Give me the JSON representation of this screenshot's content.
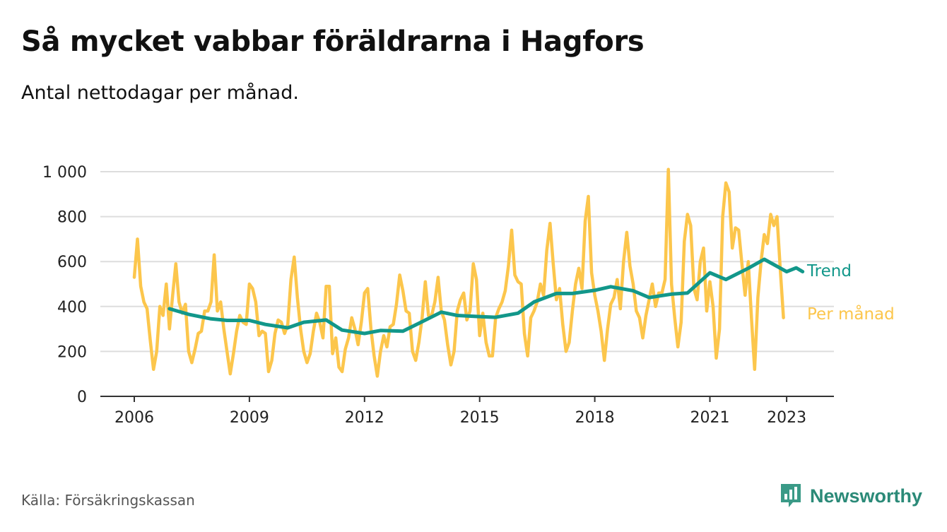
{
  "title": "Så mycket vabbar föräldrarna i Hagfors",
  "subtitle": "Antal nettodagar per månad.",
  "source": "Källa: Försäkringskassan",
  "brand": {
    "name": "Newsworthy",
    "icon": "newsworthy-logo-icon"
  },
  "colors": {
    "monthly": "#fcc64c",
    "trend": "#12978a",
    "grid": "#dddddd",
    "axis": "#333333"
  },
  "chart_data": {
    "type": "line",
    "xlabel": "",
    "ylabel": "",
    "ylim": [
      0,
      1000
    ],
    "yticks": [
      0,
      200,
      400,
      600,
      800,
      1000
    ],
    "ytick_labels": [
      "0",
      "200",
      "400",
      "600",
      "800",
      "1 000"
    ],
    "xticks": [
      2006,
      2009,
      2012,
      2015,
      2018,
      2021,
      2023
    ],
    "xtick_labels": [
      "2006",
      "2009",
      "2012",
      "2015",
      "2018",
      "2021",
      "2023"
    ],
    "grid": true,
    "legend": "inline labels at line ends",
    "series": [
      {
        "name": "Per månad",
        "color": "#fcc64c",
        "start": "2006-01",
        "values": [
          530,
          700,
          490,
          420,
          390,
          250,
          120,
          200,
          400,
          360,
          500,
          300,
          450,
          590,
          420,
          370,
          410,
          200,
          150,
          210,
          280,
          290,
          380,
          380,
          420,
          630,
          380,
          420,
          300,
          200,
          100,
          190,
          290,
          360,
          330,
          320,
          500,
          480,
          420,
          270,
          290,
          280,
          110,
          160,
          280,
          340,
          330,
          280,
          320,
          520,
          620,
          440,
          300,
          200,
          150,
          190,
          290,
          370,
          330,
          260,
          490,
          490,
          190,
          260,
          130,
          110,
          210,
          260,
          350,
          300,
          230,
          330,
          460,
          480,
          300,
          180,
          90,
          200,
          270,
          220,
          310,
          320,
          410,
          540,
          470,
          380,
          370,
          200,
          160,
          240,
          350,
          510,
          360,
          360,
          420,
          530,
          380,
          340,
          230,
          140,
          200,
          380,
          430,
          460,
          340,
          380,
          590,
          520,
          270,
          370,
          240,
          180,
          180,
          350,
          390,
          420,
          470,
          580,
          740,
          540,
          510,
          500,
          280,
          180,
          350,
          380,
          420,
          500,
          450,
          650,
          770,
          590,
          430,
          480,
          320,
          200,
          240,
          380,
          500,
          570,
          480,
          780,
          890,
          550,
          450,
          380,
          290,
          160,
          300,
          410,
          440,
          520,
          390,
          600,
          730,
          580,
          500,
          380,
          350,
          260,
          360,
          430,
          500,
          400,
          460,
          460,
          520,
          1010,
          500,
          350,
          220,
          330,
          690,
          810,
          760,
          480,
          430,
          600,
          660,
          380,
          510,
          400,
          170,
          300,
          800,
          950,
          910,
          660,
          750,
          740,
          590,
          450,
          600,
          350,
          120,
          440,
          600,
          720,
          680,
          810,
          760,
          800,
          570,
          350
        ]
      },
      {
        "name": "Trend",
        "color": "#12978a",
        "points": [
          [
            "2006-12",
            390
          ],
          [
            "2007-06",
            365
          ],
          [
            "2008-01",
            345
          ],
          [
            "2008-06",
            338
          ],
          [
            "2009-01",
            338
          ],
          [
            "2009-06",
            320
          ],
          [
            "2010-01",
            305
          ],
          [
            "2010-06",
            330
          ],
          [
            "2011-01",
            340
          ],
          [
            "2011-06",
            295
          ],
          [
            "2012-01",
            280
          ],
          [
            "2012-06",
            293
          ],
          [
            "2013-01",
            290
          ],
          [
            "2013-06",
            325
          ],
          [
            "2014-01",
            375
          ],
          [
            "2014-06",
            360
          ],
          [
            "2015-01",
            355
          ],
          [
            "2015-06",
            352
          ],
          [
            "2016-01",
            370
          ],
          [
            "2016-06",
            420
          ],
          [
            "2017-01",
            458
          ],
          [
            "2017-06",
            458
          ],
          [
            "2018-01",
            472
          ],
          [
            "2018-06",
            488
          ],
          [
            "2019-01",
            470
          ],
          [
            "2019-06",
            440
          ],
          [
            "2020-01",
            455
          ],
          [
            "2020-06",
            460
          ],
          [
            "2021-01",
            550
          ],
          [
            "2021-06",
            520
          ],
          [
            "2022-01",
            570
          ],
          [
            "2022-06",
            610
          ],
          [
            "2023-01",
            555
          ],
          [
            "2023-04",
            572
          ],
          [
            "2023-06",
            555
          ]
        ]
      }
    ]
  }
}
